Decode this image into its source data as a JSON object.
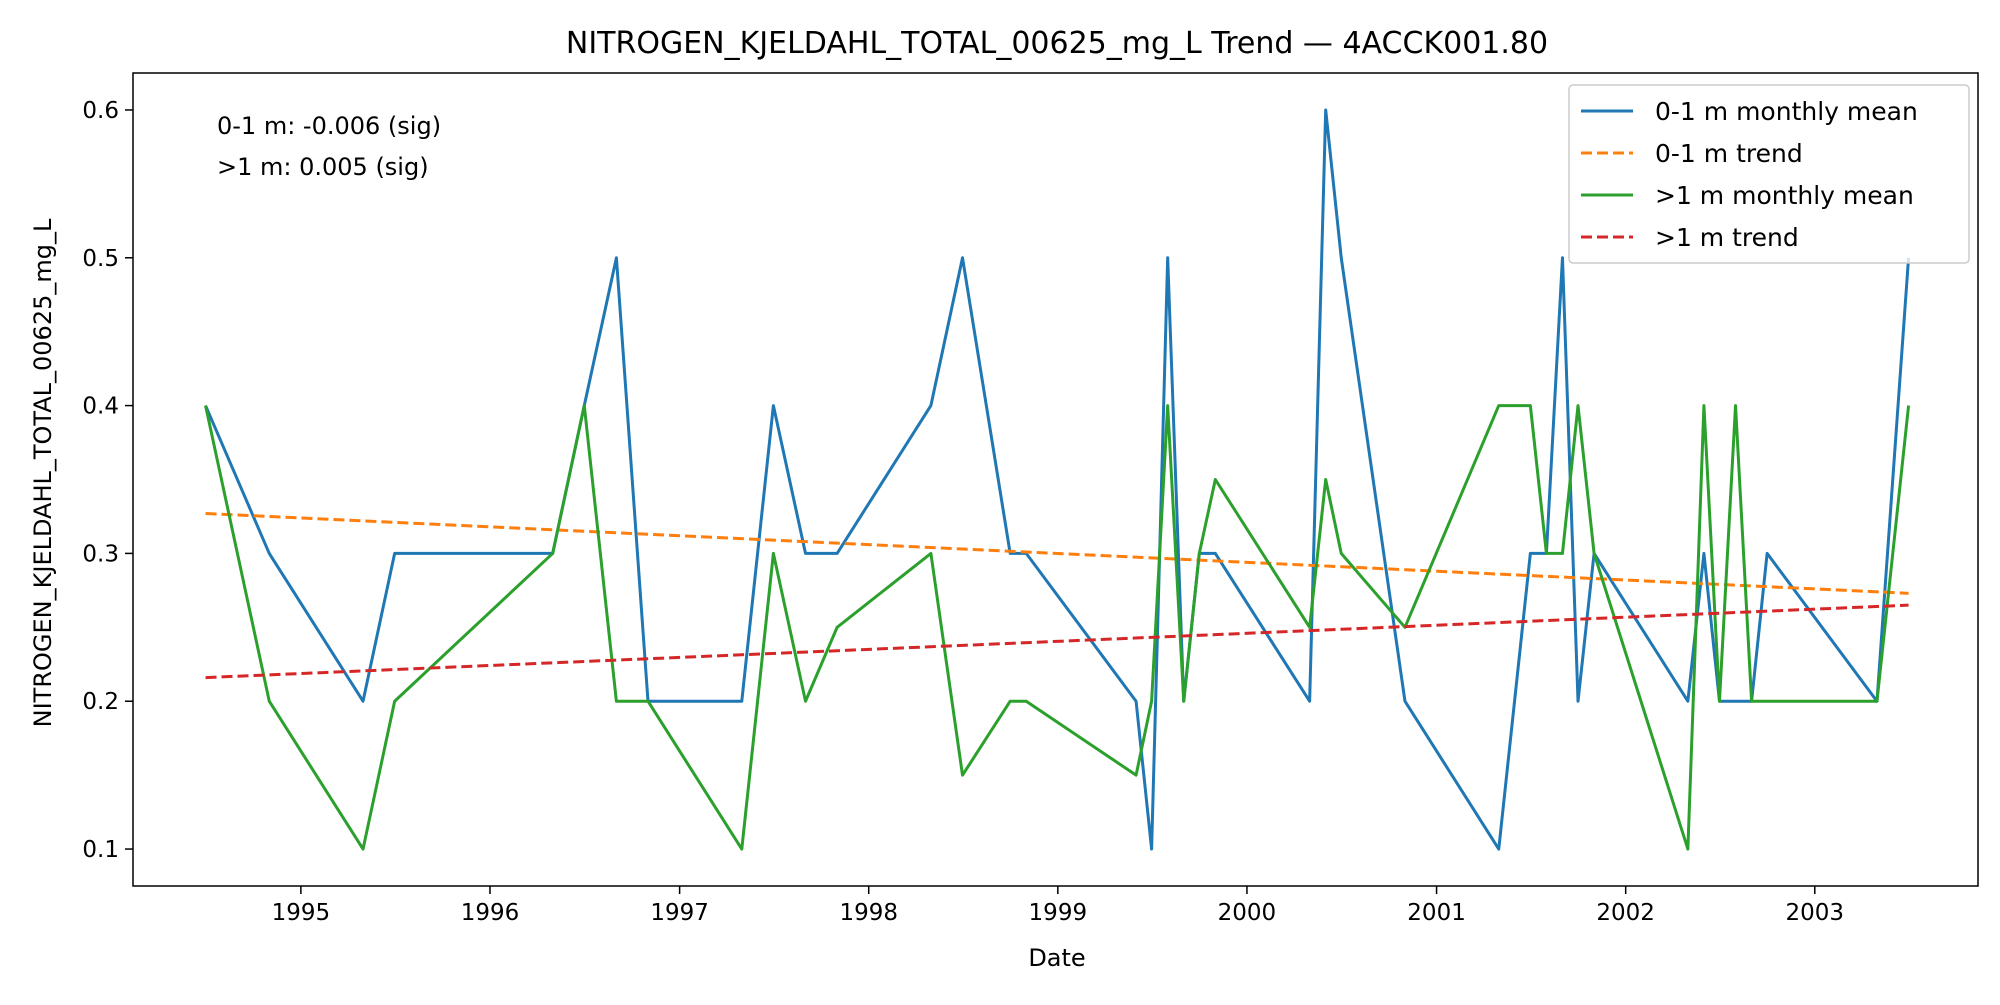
{
  "chart_data": {
    "type": "line",
    "title": "NITROGEN_KJELDAHL_TOTAL_00625_mg_L Trend — 4ACCK001.80",
    "xlabel": "Date",
    "ylabel": "NITROGEN_KJELDAHL_TOTAL_00625_mg_L",
    "xlim": [
      "1994-02-11",
      "2003-11-12"
    ],
    "ylim": [
      0.075,
      0.625
    ],
    "xticks": [
      "1995",
      "1996",
      "1997",
      "1998",
      "1999",
      "2000",
      "2001",
      "2002",
      "2003"
    ],
    "yticks": [
      "0.1",
      "0.2",
      "0.3",
      "0.4",
      "0.5",
      "0.6"
    ],
    "grid": false,
    "legend_position": "top-right",
    "annotations": [
      "0-1 m: -0.006 (sig)",
      ">1 m: 0.005 (sig)"
    ],
    "colors": {
      "shallow_mean": "#1f77b4",
      "shallow_trend": "#ff7f0e",
      "deep_mean": "#2ca02c",
      "deep_trend": "#d62728"
    },
    "series": [
      {
        "name": "0-1 m monthly mean",
        "style": "solid",
        "color": "#1f77b4",
        "x": [
          "1994-07-01",
          "1994-11-01",
          "1995-05-01",
          "1995-07-01",
          "1996-05-01",
          "1996-07-01",
          "1996-09-01",
          "1996-11-01",
          "1997-05-01",
          "1997-07-01",
          "1997-09-01",
          "1997-11-01",
          "1998-05-01",
          "1998-07-01",
          "1998-10-01",
          "1998-11-01",
          "1999-06-01",
          "1999-07-01",
          "1999-08-01",
          "1999-09-01",
          "1999-10-01",
          "1999-11-01",
          "2000-05-01",
          "2000-06-01",
          "2000-07-01",
          "2000-11-01",
          "2001-05-01",
          "2001-07-01",
          "2001-08-01",
          "2001-09-01",
          "2001-10-01",
          "2001-11-01",
          "2002-05-01",
          "2002-06-01",
          "2002-07-01",
          "2002-08-01",
          "2002-09-01",
          "2002-10-01",
          "2003-05-01",
          "2003-07-01"
        ],
        "values": [
          0.4,
          0.3,
          0.2,
          0.3,
          0.3,
          0.4,
          0.5,
          0.2,
          0.2,
          0.4,
          0.3,
          0.3,
          0.4,
          0.5,
          0.3,
          0.3,
          0.2,
          0.1,
          0.5,
          0.2,
          0.3,
          0.3,
          0.2,
          0.6,
          0.5,
          0.2,
          0.1,
          0.3,
          0.3,
          0.5,
          0.2,
          0.3,
          0.2,
          0.3,
          0.2,
          0.2,
          0.2,
          0.3,
          0.2,
          0.5
        ]
      },
      {
        "name": "0-1 m trend",
        "style": "dashed",
        "color": "#ff7f0e",
        "x": [
          "1994-07-01",
          "2003-07-01"
        ],
        "values": [
          0.327,
          0.273
        ]
      },
      {
        "name": ">1 m monthly mean",
        "style": "solid",
        "color": "#2ca02c",
        "x": [
          "1994-07-01",
          "1994-11-01",
          "1995-05-01",
          "1995-07-01",
          "1996-05-01",
          "1996-07-01",
          "1996-09-01",
          "1996-11-01",
          "1997-05-01",
          "1997-07-01",
          "1997-09-01",
          "1997-11-01",
          "1998-05-01",
          "1998-07-01",
          "1998-10-01",
          "1998-11-01",
          "1999-06-01",
          "1999-07-01",
          "1999-08-01",
          "1999-09-01",
          "1999-10-01",
          "1999-11-01",
          "2000-05-01",
          "2000-06-01",
          "2000-07-01",
          "2000-11-01",
          "2001-05-01",
          "2001-07-01",
          "2001-08-01",
          "2001-09-01",
          "2001-10-01",
          "2001-11-01",
          "2002-05-01",
          "2002-06-01",
          "2002-07-01",
          "2002-08-01",
          "2002-09-01",
          "2002-10-01",
          "2003-05-01",
          "2003-07-01"
        ],
        "values": [
          0.4,
          0.2,
          0.1,
          0.2,
          0.3,
          0.4,
          0.2,
          0.2,
          0.1,
          0.3,
          0.2,
          0.25,
          0.3,
          0.15,
          0.2,
          0.2,
          0.15,
          0.2,
          0.4,
          0.2,
          0.3,
          0.35,
          0.25,
          0.35,
          0.3,
          0.25,
          0.4,
          0.4,
          0.3,
          0.3,
          0.4,
          0.3,
          0.1,
          0.4,
          0.2,
          0.4,
          0.2,
          0.2,
          0.2,
          0.4
        ]
      },
      {
        "name": ">1 m trend",
        "style": "dashed",
        "color": "#d62728",
        "x": [
          "1994-07-01",
          "2003-07-01"
        ],
        "values": [
          0.216,
          0.265
        ]
      }
    ]
  }
}
